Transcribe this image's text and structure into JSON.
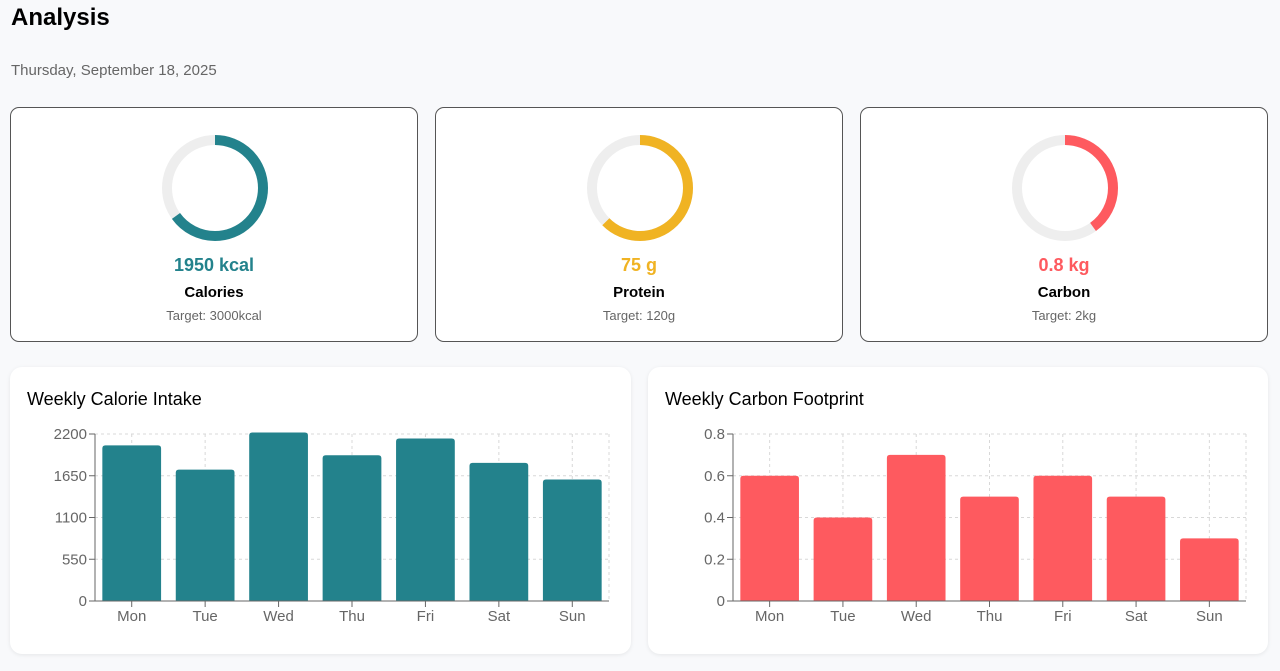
{
  "header": {
    "title": "Analysis",
    "date": "Thursday, September 18, 2025"
  },
  "stats": [
    {
      "value": "1950 kcal",
      "label": "Calories",
      "target": "Target: 3000kcal",
      "progress": 0.65,
      "color": "#23828c"
    },
    {
      "value": "75 g",
      "label": "Protein",
      "target": "Target: 120g",
      "progress": 0.625,
      "color": "#f0b323"
    },
    {
      "value": "0.8 kg",
      "label": "Carbon",
      "target": "Target: 2kg",
      "progress": 0.4,
      "color": "#fe5a5f"
    }
  ],
  "track_color": "#eeeeee",
  "chart_data": [
    {
      "type": "bar",
      "title": "Weekly Calorie Intake",
      "categories": [
        "Mon",
        "Tue",
        "Wed",
        "Thu",
        "Fri",
        "Sat",
        "Sun"
      ],
      "values": [
        2050,
        1730,
        2220,
        1920,
        2140,
        1820,
        1600
      ],
      "ylim": [
        0,
        2200
      ],
      "yticks": [
        0,
        550,
        1100,
        1650,
        2200
      ],
      "ytick_labels": [
        "0",
        "550",
        "1100",
        "1650",
        "2200"
      ],
      "color": "#23828c",
      "grid": true
    },
    {
      "type": "bar",
      "title": "Weekly Carbon Footprint",
      "categories": [
        "Mon",
        "Tue",
        "Wed",
        "Thu",
        "Fri",
        "Sat",
        "Sun"
      ],
      "values": [
        0.6,
        0.4,
        0.7,
        0.5,
        0.6,
        0.5,
        0.3
      ],
      "ylim": [
        0,
        0.8
      ],
      "yticks": [
        0,
        0.2,
        0.4,
        0.6,
        0.8
      ],
      "ytick_labels": [
        "0",
        "0.2",
        "0.4",
        "0.6",
        "0.8"
      ],
      "color": "#fe5a5f",
      "grid": true
    }
  ]
}
